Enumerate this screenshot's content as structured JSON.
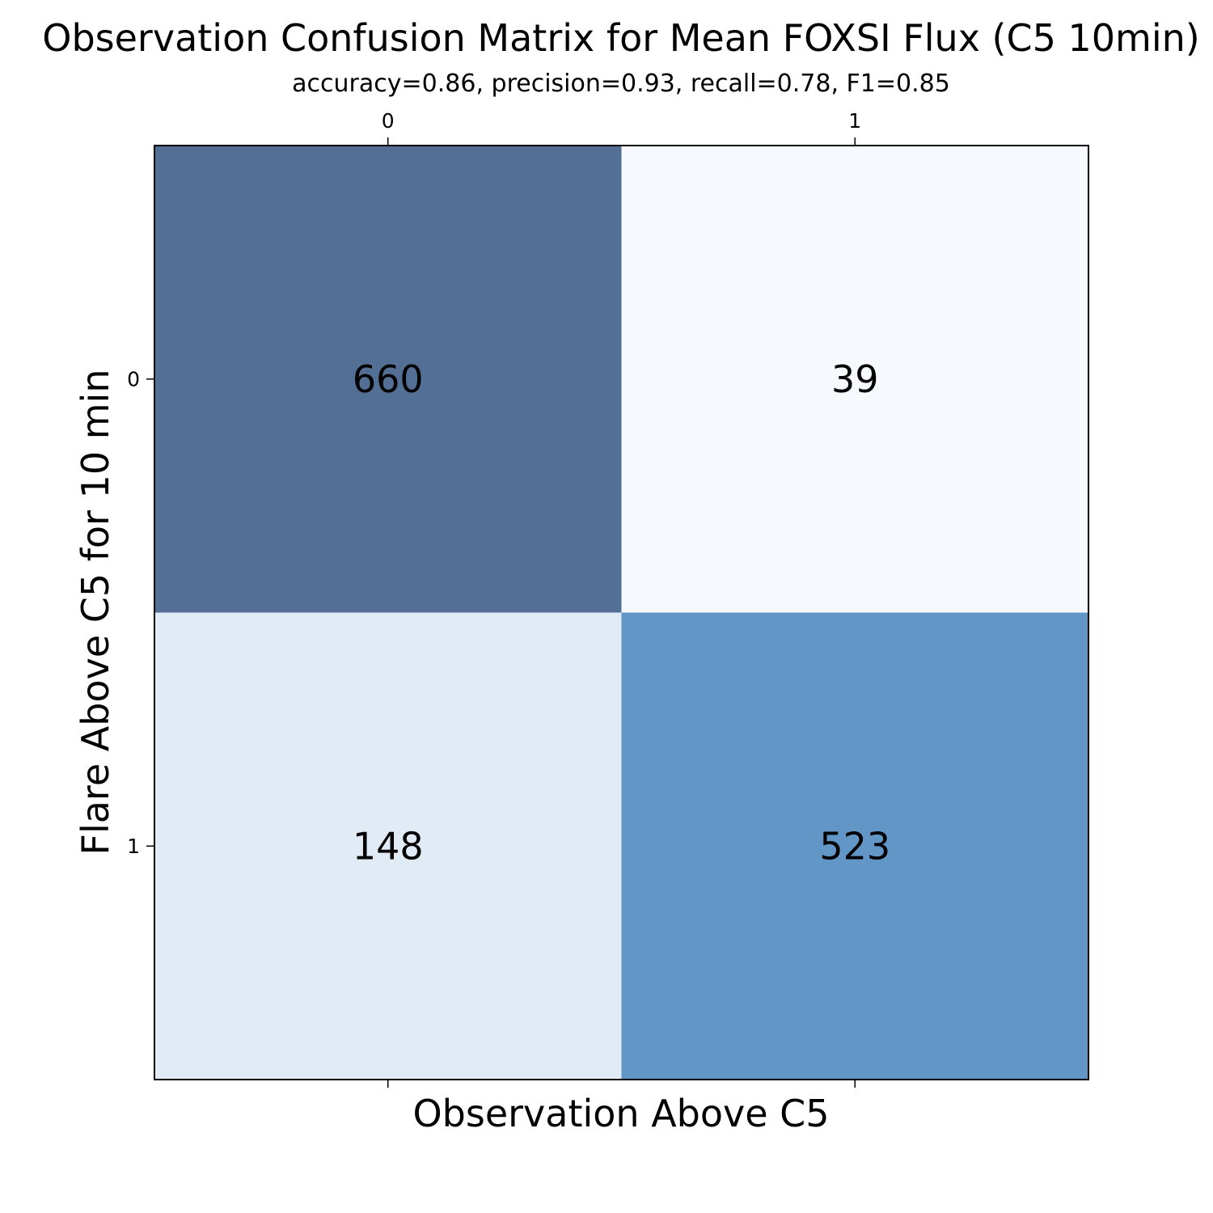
{
  "chart_data": {
    "type": "heatmap",
    "title": "Observation Confusion Matrix for Mean FOXSI Flux (C5 10min)",
    "subtitle": "accuracy=0.86, precision=0.93, recall=0.78, F1=0.85",
    "xlabel": "Observation Above C5",
    "ylabel": "Flare Above C5 for 10 min",
    "x_categories": [
      "0",
      "1"
    ],
    "y_categories": [
      "0",
      "1"
    ],
    "values": [
      [
        660,
        39
      ],
      [
        148,
        523
      ]
    ],
    "colormap": "Blues",
    "cell_colors": [
      [
        "#536f96",
        "#f6fafe"
      ],
      [
        "#e1ebf5",
        "#6196c6"
      ]
    ],
    "x_ticks_position": "top",
    "grid": false
  }
}
